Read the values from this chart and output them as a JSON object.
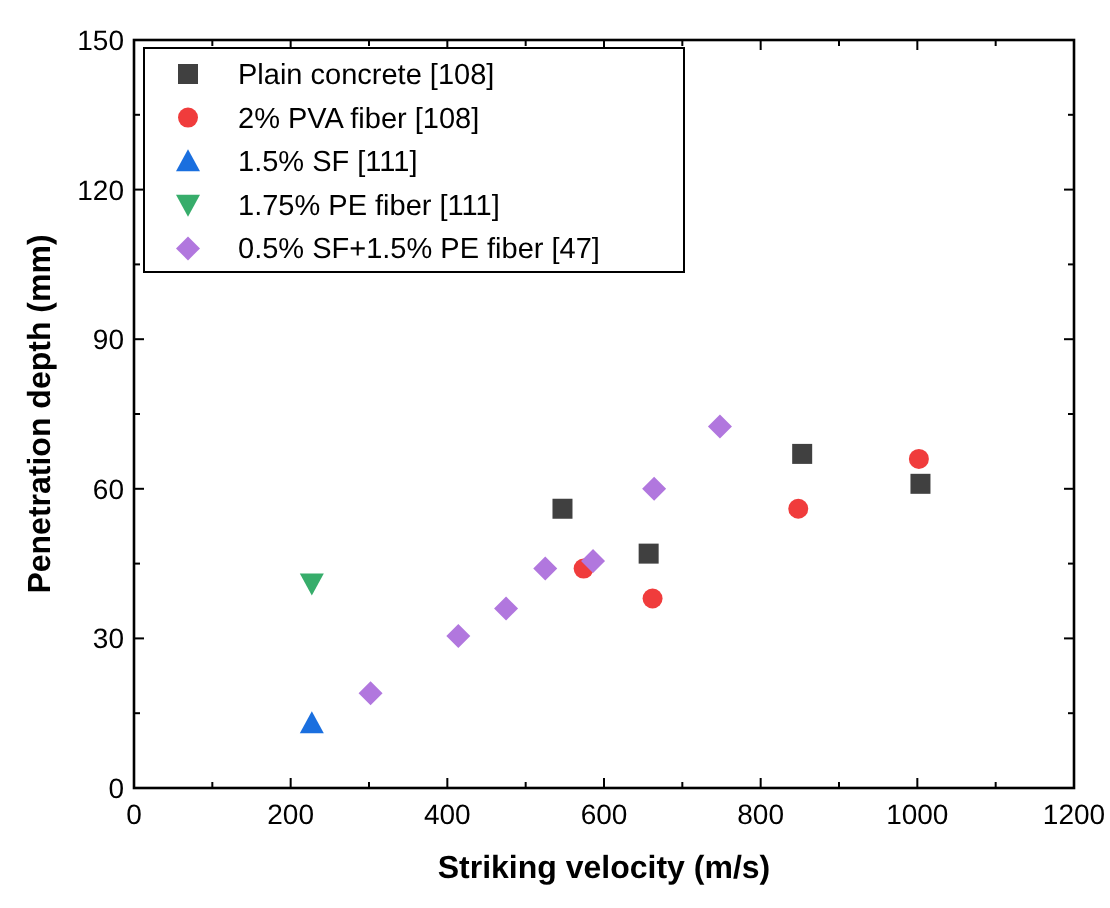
{
  "chart_data": {
    "type": "scatter",
    "xlabel": "Striking velocity (m/s)",
    "ylabel": "Penetration depth (mm)",
    "xlim": [
      0,
      1200
    ],
    "ylim": [
      0,
      150
    ],
    "xticks": [
      0,
      200,
      400,
      600,
      800,
      1000,
      1200
    ],
    "yticks": [
      0,
      30,
      60,
      90,
      120,
      150
    ],
    "grid": false,
    "legend": "top left",
    "series": [
      {
        "name": "Plain concrete [108]",
        "color": "#404040",
        "marker": "square",
        "x": [
          547,
          657,
          853,
          1004
        ],
        "values": [
          56,
          47,
          67,
          61
        ]
      },
      {
        "name": "2% PVA fiber [108]",
        "color": "#f03c3c",
        "marker": "circle",
        "x": [
          574,
          662,
          848,
          1002
        ],
        "values": [
          44,
          38,
          56,
          66
        ]
      },
      {
        "name": "1.5% SF [111]",
        "color": "#1a6fdf",
        "marker": "triangle",
        "x": [
          227
        ],
        "values": [
          13
        ]
      },
      {
        "name": "1.75% PE fiber [111]",
        "color": "#37ad6b",
        "marker": "triangle-down",
        "x": [
          227
        ],
        "values": [
          41
        ]
      },
      {
        "name": "0.5% SF+1.5% PE fiber [47]",
        "color": "#b177de",
        "marker": "diamond",
        "x": [
          302,
          414,
          475,
          525,
          586,
          664,
          748
        ],
        "values": [
          19,
          30.5,
          36,
          44,
          45.5,
          60,
          72.5
        ]
      }
    ]
  }
}
